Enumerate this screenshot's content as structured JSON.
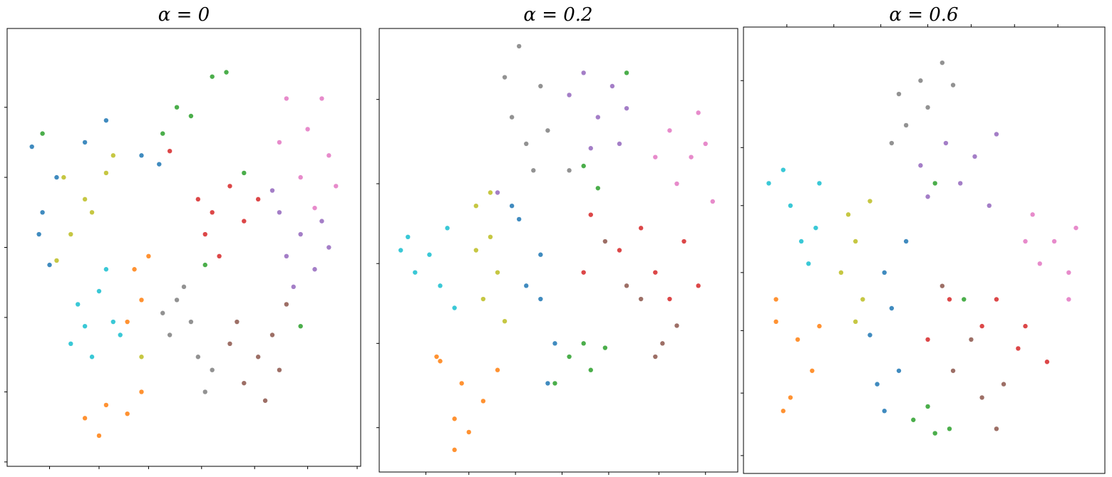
{
  "chart_data": [
    {
      "type": "scatter",
      "title": "α = 0",
      "xlim": [
        0,
        100
      ],
      "ylim": [
        0,
        100
      ],
      "xticks": [
        12,
        26,
        40,
        55,
        70,
        85,
        99
      ],
      "yticks": [
        1,
        17,
        34,
        50,
        66,
        82
      ],
      "series": [
        {
          "color": "#1f77b4",
          "x": [
            7,
            10,
            14,
            22,
            28,
            38,
            12,
            9,
            43
          ],
          "values": [
            73,
            58,
            66,
            74,
            79,
            71,
            46,
            53,
            69
          ]
        },
        {
          "color": "#e377c2",
          "x": [
            79,
            85,
            91,
            83,
            89,
            93,
            77,
            87
          ],
          "values": [
            84,
            77,
            71,
            66,
            84,
            64,
            74,
            59
          ]
        },
        {
          "color": "#9467bd",
          "x": [
            77,
            83,
            89,
            79,
            87,
            75,
            91,
            81
          ],
          "values": [
            58,
            53,
            56,
            48,
            45,
            63,
            50,
            41
          ]
        },
        {
          "color": "#2ca02c",
          "x": [
            48,
            52,
            58,
            62,
            44,
            67,
            56,
            83,
            10
          ],
          "values": [
            82,
            80,
            89,
            90,
            76,
            67,
            46,
            32,
            76
          ]
        },
        {
          "color": "#d62728",
          "x": [
            54,
            58,
            63,
            56,
            67,
            46,
            71,
            60
          ],
          "values": [
            61,
            58,
            64,
            53,
            56,
            72,
            61,
            48
          ]
        },
        {
          "color": "#7f7f7f",
          "x": [
            48,
            52,
            46,
            54,
            50,
            58,
            44,
            56
          ],
          "values": [
            38,
            33,
            30,
            25,
            41,
            22,
            35,
            17
          ]
        },
        {
          "color": "#8c564b",
          "x": [
            65,
            71,
            75,
            67,
            77,
            63,
            73,
            79
          ],
          "values": [
            33,
            25,
            30,
            19,
            22,
            28,
            15,
            37
          ]
        },
        {
          "color": "#bcbd22",
          "x": [
            16,
            22,
            28,
            18,
            24,
            14,
            30,
            38
          ],
          "values": [
            66,
            61,
            67,
            53,
            58,
            47,
            71,
            25
          ]
        },
        {
          "color": "#17becf",
          "x": [
            20,
            26,
            30,
            18,
            24,
            32,
            28,
            22
          ],
          "values": [
            37,
            40,
            33,
            28,
            25,
            30,
            45,
            32
          ]
        },
        {
          "color": "#ff7f0e",
          "x": [
            36,
            38,
            34,
            40,
            22,
            28,
            34,
            26,
            38
          ],
          "values": [
            45,
            38,
            33,
            48,
            11,
            14,
            12,
            7,
            17
          ]
        }
      ]
    },
    {
      "type": "scatter",
      "title": "α = 0.2",
      "xlim": [
        0,
        100
      ],
      "ylim": [
        0,
        100
      ],
      "xticks": [
        13,
        25,
        38,
        51,
        64,
        78,
        91
      ],
      "yticks": [
        10,
        29,
        47,
        65,
        84
      ],
      "series": [
        {
          "color": "#7f7f7f",
          "x": [
            39,
            45,
            37,
            41,
            47,
            35,
            43,
            53
          ],
          "values": [
            96,
            87,
            80,
            74,
            77,
            89,
            68,
            68
          ]
        },
        {
          "color": "#9467bd",
          "x": [
            57,
            65,
            61,
            69,
            53,
            67,
            59,
            33
          ],
          "values": [
            90,
            87,
            80,
            82,
            85,
            74,
            73,
            63
          ]
        },
        {
          "color": "#e377c2",
          "x": [
            81,
            87,
            91,
            83,
            93,
            77,
            89
          ],
          "values": [
            77,
            71,
            74,
            65,
            61,
            71,
            81
          ]
        },
        {
          "color": "#2ca02c",
          "x": [
            61,
            57,
            69,
            53,
            59,
            63,
            49,
            57
          ],
          "values": [
            64,
            69,
            90,
            26,
            23,
            28,
            20,
            29
          ]
        },
        {
          "color": "#d62728",
          "x": [
            59,
            67,
            77,
            85,
            89,
            57,
            73,
            81
          ],
          "values": [
            58,
            50,
            45,
            52,
            42,
            45,
            55,
            39
          ]
        },
        {
          "color": "#8c564b",
          "x": [
            63,
            73,
            79,
            83,
            69,
            77
          ],
          "values": [
            52,
            39,
            29,
            33,
            42,
            26
          ]
        },
        {
          "color": "#1f77b4",
          "x": [
            39,
            45,
            41,
            49,
            47,
            37,
            45
          ],
          "values": [
            57,
            49,
            42,
            29,
            20,
            60,
            39
          ]
        },
        {
          "color": "#bcbd22",
          "x": [
            27,
            31,
            33,
            29,
            35,
            27,
            31
          ],
          "values": [
            60,
            53,
            45,
            39,
            34,
            50,
            63
          ]
        },
        {
          "color": "#17becf",
          "x": [
            8,
            14,
            17,
            10,
            19,
            21,
            6
          ],
          "values": [
            53,
            49,
            42,
            45,
            55,
            37,
            50
          ]
        },
        {
          "color": "#ff7f0e",
          "x": [
            17,
            23,
            29,
            21,
            25,
            33,
            16,
            21
          ],
          "values": [
            25,
            20,
            16,
            12,
            9,
            23,
            26,
            5
          ]
        }
      ]
    },
    {
      "type": "scatter",
      "title": "α = 0.6",
      "xlim": [
        0,
        100
      ],
      "ylim": [
        0,
        100
      ],
      "xtick_side": "top",
      "xticks": [
        12,
        25,
        38,
        51,
        63,
        75,
        87
      ],
      "yticks": [
        4,
        18,
        32,
        45,
        60,
        73,
        88
      ],
      "series": [
        {
          "color": "#7f7f7f",
          "x": [
            43,
            49,
            55,
            45,
            51,
            58,
            41
          ],
          "values": [
            85,
            88,
            92,
            78,
            82,
            87,
            74
          ]
        },
        {
          "color": "#9467bd",
          "x": [
            56,
            64,
            70,
            60,
            51,
            68,
            49
          ],
          "values": [
            74,
            71,
            76,
            65,
            62,
            60,
            69
          ]
        },
        {
          "color": "#e377c2",
          "x": [
            80,
            86,
            90,
            82,
            92,
            78,
            90
          ],
          "values": [
            58,
            52,
            45,
            47,
            55,
            52,
            39
          ]
        },
        {
          "color": "#17becf",
          "x": [
            7,
            13,
            20,
            16,
            21,
            11,
            18
          ],
          "values": [
            65,
            60,
            55,
            52,
            65,
            68,
            47
          ]
        },
        {
          "color": "#bcbd22",
          "x": [
            29,
            31,
            33,
            35,
            27,
            31
          ],
          "values": [
            58,
            52,
            39,
            61,
            45,
            34
          ]
        },
        {
          "color": "#ff7f0e",
          "x": [
            9,
            15,
            19,
            13,
            21,
            11,
            9
          ],
          "values": [
            34,
            30,
            23,
            17,
            33,
            14,
            39
          ]
        },
        {
          "color": "#1f77b4",
          "x": [
            39,
            41,
            37,
            43,
            39,
            45,
            35
          ],
          "values": [
            45,
            37,
            20,
            23,
            14,
            52,
            31
          ]
        },
        {
          "color": "#2ca02c",
          "x": [
            47,
            53,
            51,
            57,
            61,
            53
          ],
          "values": [
            12,
            9,
            15,
            10,
            39,
            65
          ]
        },
        {
          "color": "#d62728",
          "x": [
            57,
            66,
            76,
            84,
            51,
            70,
            78
          ],
          "values": [
            39,
            33,
            28,
            25,
            30,
            39,
            33
          ]
        },
        {
          "color": "#8c564b",
          "x": [
            55,
            63,
            66,
            70,
            58,
            72
          ],
          "values": [
            42,
            30,
            17,
            10,
            23,
            20
          ]
        }
      ]
    }
  ]
}
